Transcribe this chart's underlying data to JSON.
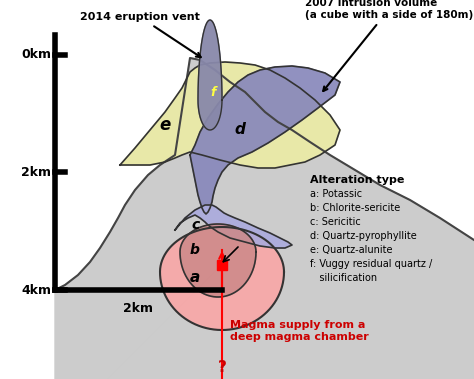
{
  "bg_color": "#cccccc",
  "zone_a_color": "#f4aaaa",
  "zone_b_color": "#cc8888",
  "zone_c_color": "#aaaadd",
  "zone_d_color": "#8888bb",
  "zone_e_color": "#e8e8a8",
  "zone_f_color": "#8888aa",
  "y_axis_labels": [
    "0km",
    "2km",
    "4km"
  ],
  "x_scale_label": "2km",
  "label_2014": "2014 eruption vent",
  "label_2007_line1": "2007 intrusion volume",
  "label_2007_line2": "(a cube with a side of 180m)",
  "label_alteration": "Alteration type",
  "alteration_items": [
    "a: Potassic",
    "b: Chlorite-sericite",
    "c: Sericitic",
    "d: Quartz-pyrophyllite",
    "e: Quartz-alunite",
    "f: Vuggy residual quartz /",
    "   silicification"
  ],
  "label_magma_line1": "Magma supply from a",
  "label_magma_line2": "deep magma chamber",
  "label_q": "?"
}
